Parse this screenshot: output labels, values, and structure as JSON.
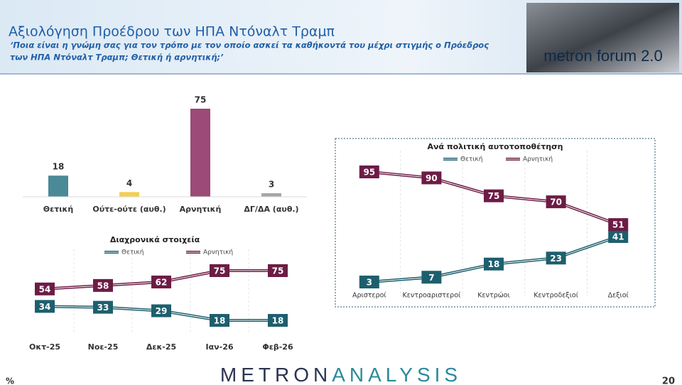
{
  "header": {
    "title": "Αξιολόγηση Προέδρου των ΗΠΑ Ντόναλτ Τραμπ",
    "subtitle_lines": [
      "‘Ποια είναι η γνώμη σας για τον τρόπο με τον οποίο ασκεί τα καθήκοντά του μέχρι στιγμής ο Πρόεδρος",
      "των ΗΠΑ Ντόναλτ Τραμπ; Θετική ή αρνητική;’"
    ],
    "logo": "metron forum 2.0"
  },
  "chart_data": [
    {
      "type": "bar",
      "categories": [
        "Θετική",
        "Ούτε-ούτε (αυθ.)",
        "Αρνητική",
        "ΔΓ/ΔΑ (αυθ.)"
      ],
      "values": [
        18,
        4,
        75,
        3
      ],
      "colors": [
        "#4a8a96",
        "#f2d050",
        "#9c4a78",
        "#a6a6a6"
      ]
    },
    {
      "type": "line",
      "title": "Διαχρονικά στοιχεία",
      "categories": [
        "Οκτ-25",
        "Νοε-25",
        "Δεκ-25",
        "Ιαν-26",
        "Φεβ-26"
      ],
      "series": [
        {
          "name": "Θετική",
          "color": "#1e5f6e",
          "values": [
            34,
            33,
            29,
            18,
            18
          ]
        },
        {
          "name": "Αρνητική",
          "color": "#6d1c45",
          "values": [
            54,
            58,
            62,
            75,
            75
          ]
        }
      ]
    },
    {
      "type": "line",
      "title": "Ανά πολιτική αυτοτοποθέτηση",
      "categories": [
        "Αριστεροί",
        "Κεντροαριστεροί",
        "Κεντρώοι",
        "Κεντροδεξιοί",
        "Δεξιοί"
      ],
      "series": [
        {
          "name": "Θετική",
          "color": "#1e5f6e",
          "values": [
            3,
            7,
            18,
            23,
            41
          ]
        },
        {
          "name": "Αρνητική",
          "color": "#6d1c45",
          "values": [
            95,
            90,
            75,
            70,
            51
          ]
        }
      ]
    }
  ],
  "footer": {
    "brand_left": "METRON",
    "brand_right": "ANALYSIS",
    "unit": "%",
    "page": "20"
  }
}
